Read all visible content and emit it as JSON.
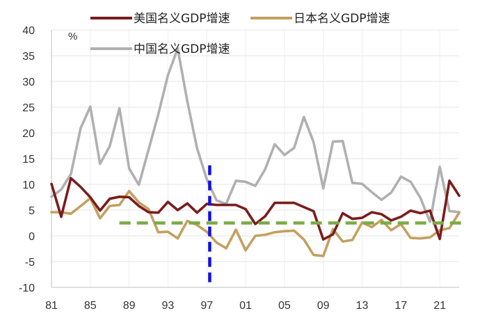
{
  "chart_data": {
    "type": "line",
    "unit_label": "%",
    "ylim": [
      -10,
      40
    ],
    "y_ticks": [
      40,
      35,
      30,
      25,
      20,
      15,
      10,
      5,
      0,
      -5,
      -10
    ],
    "xlim": [
      1981,
      2023
    ],
    "x_tick_labels": [
      {
        "x": 1981,
        "label": "81"
      },
      {
        "x": 1985,
        "label": "85"
      },
      {
        "x": 1989,
        "label": "89"
      },
      {
        "x": 1993,
        "label": "93"
      },
      {
        "x": 1997,
        "label": "97"
      },
      {
        "x": 2001,
        "label": "01"
      },
      {
        "x": 2005,
        "label": "05"
      },
      {
        "x": 2009,
        "label": "09"
      },
      {
        "x": 2013,
        "label": "13"
      },
      {
        "x": 2017,
        "label": "17"
      },
      {
        "x": 2021,
        "label": "21"
      }
    ],
    "grid": true,
    "legend": "top",
    "x": [
      1981,
      1982,
      1983,
      1984,
      1985,
      1986,
      1987,
      1988,
      1989,
      1990,
      1991,
      1992,
      1993,
      1994,
      1995,
      1996,
      1997,
      1998,
      1999,
      2000,
      2001,
      2002,
      2003,
      2004,
      2005,
      2006,
      2007,
      2008,
      2009,
      2010,
      2011,
      2012,
      2013,
      2014,
      2015,
      2016,
      2017,
      2018,
      2019,
      2020,
      2021,
      2022,
      2023
    ],
    "series": [
      {
        "name": "美国名义GDP增速",
        "color": "#7b1c1c",
        "values": [
          10.1,
          3.7,
          11.2,
          9.5,
          7.5,
          4.9,
          7.2,
          7.6,
          7.5,
          5.8,
          4.6,
          4.5,
          6.6,
          5.0,
          6.3,
          4.5,
          6.2,
          6.0,
          6.0,
          6.0,
          5.2,
          2.3,
          3.8,
          6.4,
          6.4,
          6.4,
          5.6,
          4.8,
          -0.7,
          0.3,
          4.4,
          3.3,
          3.5,
          4.6,
          4.2,
          3.0,
          3.7,
          4.9,
          4.4,
          4.9,
          -0.6,
          10.7,
          7.8
        ]
      },
      {
        "name": "日本名义GDP增速",
        "color": "#c4a060",
        "values": [
          4.6,
          4.6,
          4.3,
          5.8,
          7.3,
          3.4,
          5.8,
          6.0,
          8.7,
          6.5,
          5.2,
          0.7,
          0.8,
          -0.5,
          2.9,
          2.1,
          0.8,
          -1.3,
          -2.4,
          1.2,
          -2.8,
          0.0,
          0.2,
          0.7,
          0.9,
          1.0,
          -0.7,
          -3.7,
          -3.9,
          1.3,
          -1.1,
          -0.8,
          2.6,
          1.7,
          3.1,
          1.1,
          2.3,
          -0.4,
          -0.5,
          -0.3,
          1.1,
          1.5,
          4.5
        ]
      },
      {
        "name": "中国名义GDP增速",
        "color": "#b0b0b0",
        "values": [
          7.6,
          9.0,
          12.0,
          20.9,
          25.1,
          14.0,
          17.4,
          24.8,
          13.1,
          9.9,
          16.7,
          23.6,
          31.2,
          36.4,
          26.1,
          17.0,
          11.0,
          6.9,
          6.2,
          10.7,
          10.5,
          9.7,
          12.9,
          17.8,
          15.7,
          17.1,
          23.1,
          18.2,
          9.2,
          18.3,
          18.4,
          10.3,
          10.1,
          8.5,
          7.0,
          8.4,
          11.5,
          10.5,
          7.4,
          2.7,
          13.4,
          4.8,
          4.6
        ]
      }
    ],
    "reference_lines": [
      {
        "orientation": "vertical",
        "x": 1997.3,
        "color": "#1010e0",
        "style": "dashed"
      },
      {
        "orientation": "horizontal",
        "y": 2.5,
        "x_start": 1988,
        "x_end": 2023.8,
        "color": "#7aab45",
        "style": "dashed"
      }
    ]
  }
}
